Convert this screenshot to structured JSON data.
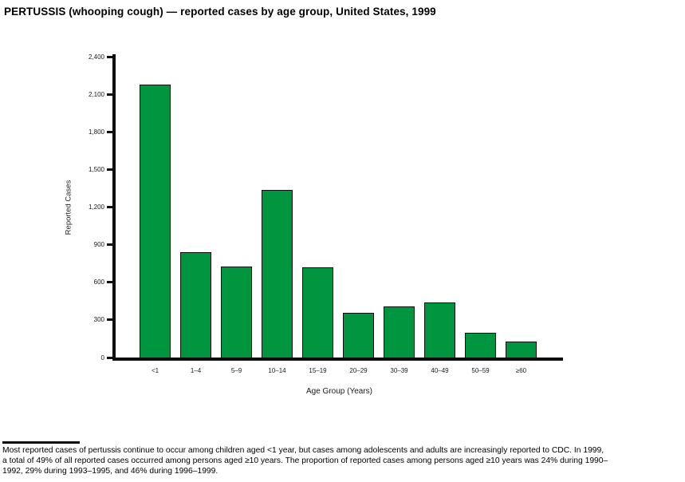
{
  "title": "PERTUSSIS (whooping cough) — reported cases by age group, United States, 1999",
  "chart_data": {
    "type": "bar",
    "title": "PERTUSSIS (whooping cough) — reported cases by age group, United States, 1999",
    "categories": [
      "<1",
      "1–4",
      "5–9",
      "10–14",
      "15–19",
      "20–29",
      "30–39",
      "40–49",
      "50–59",
      "≥60"
    ],
    "values": [
      2180,
      840,
      725,
      1340,
      720,
      355,
      410,
      440,
      200,
      130
    ],
    "xlabel": "Age Group (Years)",
    "ylabel": "Reported Cases",
    "ylim": [
      0,
      2400
    ],
    "y_tick_interval": 300,
    "y_ticks": [
      0,
      300,
      600,
      900,
      1200,
      1500,
      1800,
      2100,
      2400
    ],
    "y_tick_labels": [
      "0",
      "300",
      "600",
      "900",
      "1,200",
      "1,500",
      "1,800",
      "2,100",
      "2,400"
    ],
    "grid": false,
    "legend_position": "none",
    "bar_color": "#009640",
    "bar_border_color": "#0d0d0d"
  },
  "footnote": {
    "lines": [
      "Most reported cases of pertussis continue to occur among children aged <1 year, but cases among adolescents and adults are increasingly reported to CDC. In 1999,",
      "a total of 49% of all reported cases occurred among persons aged ≥10 years. The proportion of reported cases among persons aged ≥10 years was 24% during 1990–",
      "1992, 29% during 1993–1995, and 46% during 1996–1999."
    ]
  }
}
